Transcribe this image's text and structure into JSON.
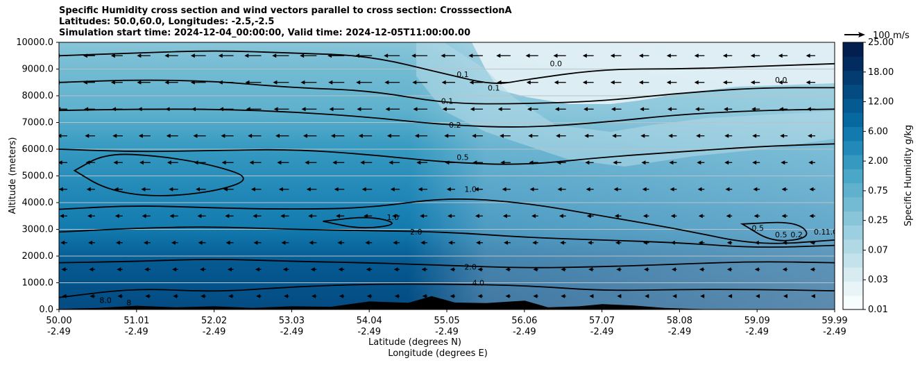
{
  "chart_data": {
    "type": "heatmap",
    "title_lines": [
      "Specific Humidity cross section and wind vectors parallel to cross section: CrosssectionA",
      "Latitudes: 50.0,60.0, Longitudes: -2.5,-2.5",
      "Simulation start time: 2024-12-04_00:00:00, Valid time: 2024-12-05T11:00:00.00"
    ],
    "ylabel": "Altitude (meters)",
    "xlabel_lat": "Latitude (degrees N)",
    "xlabel_lon": "Longitude (degrees E)",
    "ylim": [
      0,
      10000
    ],
    "xlim": [
      50.0,
      59.99
    ],
    "y_ticks": [
      "0.0",
      "1000.0",
      "2000.0",
      "3000.0",
      "4000.0",
      "5000.0",
      "6000.0",
      "7000.0",
      "8000.0",
      "9000.0",
      "10000.0"
    ],
    "x_ticks_lat": [
      "50.00",
      "51.01",
      "52.02",
      "53.03",
      "54.04",
      "55.05",
      "56.06",
      "57.07",
      "58.08",
      "59.09",
      "59.99"
    ],
    "x_ticks_lon": [
      "-2.49",
      "-2.49",
      "-2.49",
      "-2.49",
      "-2.49",
      "-2.49",
      "-2.49",
      "-2.49",
      "-2.49",
      "-2.49",
      "-2.49"
    ],
    "grid": "horizontal",
    "colorbar": {
      "label": "Specific Humidity g/kg",
      "ticks": [
        "0.01",
        "0.03",
        "0.07",
        "0.25",
        "0.75",
        "2.00",
        "6.00",
        "12.00",
        "18.00",
        "25.00"
      ],
      "levels": [
        0.01,
        0.02,
        0.03,
        0.05,
        0.07,
        0.1,
        0.25,
        0.5,
        0.75,
        1.0,
        2.0,
        4.0,
        6.0,
        8.0,
        12.0,
        15.0,
        18.0,
        22.0,
        25.0
      ],
      "colors": [
        "#f7fcfd",
        "#e8f4f8",
        "#d7ebf1",
        "#c4e2eb",
        "#b0d8e5",
        "#9ccfdf",
        "#88c5d9",
        "#73bbd3",
        "#5fb1cd",
        "#4aa7c7",
        "#3599c0",
        "#2389b8",
        "#127aae",
        "#066aa1",
        "#055a92",
        "#044b82",
        "#033c71",
        "#022c60",
        "#021f4f"
      ]
    },
    "quiver_key": "100 m/s",
    "contour_labels": [
      {
        "text": "0.0",
        "x": 56.4,
        "y": 9100
      },
      {
        "text": "0.0",
        "x": 59.3,
        "y": 8500
      },
      {
        "text": "0.1",
        "x": 55.2,
        "y": 8700
      },
      {
        "text": "0.1",
        "x": 55.6,
        "y": 8200
      },
      {
        "text": "0.1",
        "x": 55.0,
        "y": 7700
      },
      {
        "text": "0.2",
        "x": 55.1,
        "y": 6800
      },
      {
        "text": "0.5",
        "x": 55.2,
        "y": 5600
      },
      {
        "text": "1.0",
        "x": 55.3,
        "y": 4400
      },
      {
        "text": "1.0",
        "x": 54.3,
        "y": 3350
      },
      {
        "text": "2.0",
        "x": 54.6,
        "y": 2800
      },
      {
        "text": "2.0",
        "x": 55.3,
        "y": 1500
      },
      {
        "text": "4.0",
        "x": 55.4,
        "y": 900
      },
      {
        "text": "8.0",
        "x": 50.6,
        "y": 250
      },
      {
        "text": "8",
        "x": 50.9,
        "y": 150
      },
      {
        "text": "0.5",
        "x": 59.0,
        "y": 2950
      },
      {
        "text": "0.5",
        "x": 59.3,
        "y": 2700
      },
      {
        "text": "0.2",
        "x": 59.5,
        "y": 2700
      },
      {
        "text": "0.1",
        "x": 59.8,
        "y": 2800
      },
      {
        "text": "1.0",
        "x": 59.95,
        "y": 2800
      }
    ],
    "contours": [
      {
        "level": "2.0",
        "points": [
          [
            50.0,
            1750
          ],
          [
            51.0,
            1800
          ],
          [
            52.0,
            1900
          ],
          [
            53.0,
            1800
          ],
          [
            54.0,
            1750
          ],
          [
            55.0,
            1650
          ],
          [
            56.0,
            1550
          ],
          [
            57.0,
            1600
          ],
          [
            58.0,
            1700
          ],
          [
            59.0,
            1800
          ],
          [
            59.99,
            1750
          ]
        ]
      },
      {
        "level": "4.0",
        "points": [
          [
            50.0,
            450
          ],
          [
            51.0,
            800
          ],
          [
            52.0,
            650
          ],
          [
            53.0,
            850
          ],
          [
            54.0,
            950
          ],
          [
            55.0,
            950
          ],
          [
            56.0,
            900
          ],
          [
            57.0,
            700
          ],
          [
            58.0,
            750
          ],
          [
            59.0,
            750
          ],
          [
            59.99,
            700
          ]
        ]
      },
      {
        "level": "1.0",
        "points": [
          [
            50.0,
            3750
          ],
          [
            51.0,
            3900
          ],
          [
            52.0,
            3800
          ],
          [
            53.0,
            3750
          ],
          [
            54.0,
            3800
          ],
          [
            55.0,
            4200
          ],
          [
            56.0,
            4000
          ],
          [
            57.0,
            3500
          ],
          [
            58.0,
            3000
          ],
          [
            59.0,
            2400
          ],
          [
            59.99,
            2600
          ]
        ]
      },
      {
        "level": "1.0b",
        "points": [
          [
            50.0,
            2900
          ],
          [
            51.0,
            3050
          ],
          [
            52.0,
            3100
          ],
          [
            53.0,
            3000
          ],
          [
            54.0,
            2950
          ],
          [
            55.0,
            2900
          ],
          [
            56.0,
            2700
          ],
          [
            57.0,
            2600
          ],
          [
            58.0,
            2500
          ],
          [
            59.0,
            2300
          ],
          [
            59.99,
            2400
          ]
        ]
      },
      {
        "level": "0.5",
        "points": [
          [
            50.0,
            6000
          ],
          [
            51.0,
            5900
          ],
          [
            52.0,
            5950
          ],
          [
            53.0,
            6000
          ],
          [
            54.0,
            5800
          ],
          [
            55.0,
            5500
          ],
          [
            56.0,
            5400
          ],
          [
            57.0,
            5700
          ],
          [
            58.0,
            5900
          ],
          [
            59.0,
            6100
          ],
          [
            59.99,
            6200
          ]
        ]
      },
      {
        "level": "0.2",
        "points": [
          [
            50.0,
            7450
          ],
          [
            51.0,
            7500
          ],
          [
            52.0,
            7500
          ],
          [
            53.0,
            7400
          ],
          [
            54.0,
            7200
          ],
          [
            55.0,
            6900
          ],
          [
            56.0,
            6800
          ],
          [
            57.0,
            7000
          ],
          [
            58.0,
            7300
          ],
          [
            59.0,
            7450
          ],
          [
            59.99,
            7500
          ]
        ]
      },
      {
        "level": "0.1",
        "points": [
          [
            50.0,
            8500
          ],
          [
            51.0,
            8600
          ],
          [
            52.0,
            8550
          ],
          [
            53.0,
            8300
          ],
          [
            54.0,
            8200
          ],
          [
            55.0,
            7700
          ],
          [
            56.0,
            7700
          ],
          [
            57.0,
            7800
          ],
          [
            58.0,
            8100
          ],
          [
            59.0,
            8300
          ],
          [
            59.99,
            8300
          ]
        ]
      },
      {
        "level": "0.0",
        "points": [
          [
            50.0,
            9500
          ],
          [
            51.0,
            9600
          ],
          [
            52.0,
            9700
          ],
          [
            53.0,
            9600
          ],
          [
            54.0,
            9500
          ],
          [
            55.0,
            8800
          ],
          [
            55.6,
            8400
          ],
          [
            56.0,
            8600
          ],
          [
            57.0,
            9000
          ],
          [
            58.0,
            9000
          ],
          [
            59.0,
            9100
          ],
          [
            59.99,
            9200
          ]
        ]
      }
    ],
    "loop_contours": [
      {
        "level": "1.0",
        "points": [
          [
            50.2,
            5200
          ],
          [
            50.6,
            5850
          ],
          [
            51.3,
            5750
          ],
          [
            52.0,
            5400
          ],
          [
            52.5,
            4900
          ],
          [
            52.0,
            4400
          ],
          [
            51.2,
            4200
          ],
          [
            50.6,
            4500
          ],
          [
            50.2,
            5200
          ]
        ]
      },
      {
        "level": "2.0",
        "points": [
          [
            53.4,
            3300
          ],
          [
            54.0,
            3500
          ],
          [
            54.4,
            3200
          ],
          [
            53.9,
            3000
          ],
          [
            53.4,
            3300
          ]
        ]
      },
      {
        "level": "0.5",
        "points": [
          [
            58.8,
            3200
          ],
          [
            59.5,
            3300
          ],
          [
            59.7,
            2700
          ],
          [
            59.2,
            2500
          ],
          [
            58.8,
            3200
          ]
        ]
      }
    ],
    "terrain": [
      [
        50.0,
        20
      ],
      [
        50.5,
        60
      ],
      [
        51.0,
        140
      ],
      [
        51.5,
        80
      ],
      [
        52.0,
        120
      ],
      [
        52.5,
        60
      ],
      [
        53.0,
        120
      ],
      [
        53.5,
        100
      ],
      [
        54.0,
        300
      ],
      [
        54.5,
        250
      ],
      [
        54.8,
        500
      ],
      [
        55.1,
        260
      ],
      [
        55.5,
        240
      ],
      [
        56.0,
        330
      ],
      [
        56.3,
        80
      ],
      [
        56.7,
        120
      ],
      [
        57.0,
        200
      ],
      [
        57.4,
        150
      ],
      [
        57.8,
        60
      ],
      [
        58.2,
        20
      ],
      [
        58.5,
        0
      ],
      [
        59.99,
        0
      ]
    ],
    "wind_u_ms": [
      {
        "altitude": 9500,
        "speeds": [
          -10,
          -12,
          -14,
          -16,
          -16,
          -15,
          -13,
          -11,
          -9,
          -8,
          -7,
          -7
        ]
      },
      {
        "altitude": 8500,
        "speeds": [
          -10,
          -12,
          -14,
          -15,
          -15,
          -14,
          -12,
          -10,
          -9,
          -8,
          -7,
          -7
        ]
      },
      {
        "altitude": 7500,
        "speeds": [
          -9,
          -11,
          -13,
          -14,
          -14,
          -13,
          -11,
          -9,
          -8,
          -7,
          -6,
          -6
        ]
      },
      {
        "altitude": 6500,
        "speeds": [
          -8,
          -10,
          -11,
          -12,
          -12,
          -11,
          -9,
          -8,
          -7,
          -6,
          -5,
          -5
        ]
      },
      {
        "altitude": 5500,
        "speeds": [
          -7,
          -9,
          -10,
          -10,
          -10,
          -9,
          -8,
          -7,
          -6,
          -5,
          -5,
          -4
        ]
      },
      {
        "altitude": 4500,
        "speeds": [
          -6,
          -7,
          -8,
          -8,
          -8,
          -7,
          -6,
          -6,
          -5,
          -4,
          -4,
          -3
        ]
      },
      {
        "altitude": 3500,
        "speeds": [
          -5,
          -6,
          -6,
          -6,
          -6,
          -5,
          -5,
          -4,
          -4,
          -3,
          -3,
          -3
        ]
      },
      {
        "altitude": 2500,
        "speeds": [
          -4,
          -4,
          -5,
          -5,
          -4,
          -4,
          -4,
          -3,
          -3,
          -3,
          -2,
          -2
        ]
      },
      {
        "altitude": 1500,
        "speeds": [
          -3,
          -3,
          -3,
          -3,
          -3,
          -3,
          -2,
          -2,
          -2,
          -2,
          -2,
          -2
        ]
      },
      {
        "altitude": 500,
        "speeds": [
          -2,
          -2,
          -2,
          -2,
          -2,
          -2,
          -2,
          -2,
          -1,
          -1,
          -1,
          -1
        ]
      }
    ]
  }
}
